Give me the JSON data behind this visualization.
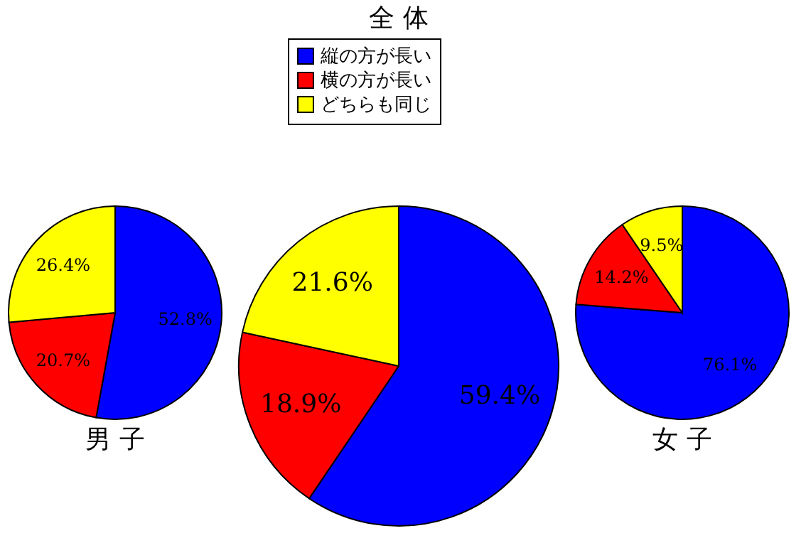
{
  "chart_data": [
    {
      "type": "pie",
      "title": "男 子",
      "categories": [
        null,
        null,
        null
      ],
      "values": [
        52.8,
        20.7,
        26.4
      ],
      "colors": [
        "#0000ff",
        "#ff0000",
        "#ffff00"
      ],
      "value_labels": [
        "52.8%",
        "20.7%",
        "26.4%"
      ],
      "legend": false
    },
    {
      "type": "pie",
      "title": "全 体",
      "categories": [
        "縦の方が長い",
        "横の方が長い",
        "どちらも同じ"
      ],
      "values": [
        59.4,
        18.9,
        21.6
      ],
      "colors": [
        "#0000ff",
        "#ff0000",
        "#ffff00"
      ],
      "value_labels": [
        "59.4%",
        "18.9%",
        "21.6%"
      ],
      "legend": "top"
    },
    {
      "type": "pie",
      "title": "女 子",
      "categories": [
        null,
        null,
        null
      ],
      "values": [
        76.1,
        14.2,
        9.5
      ],
      "colors": [
        "#0000ff",
        "#ff0000",
        "#ffff00"
      ],
      "value_labels": [
        "76.1%",
        "14.2%",
        "9.5%"
      ],
      "legend": false
    }
  ]
}
